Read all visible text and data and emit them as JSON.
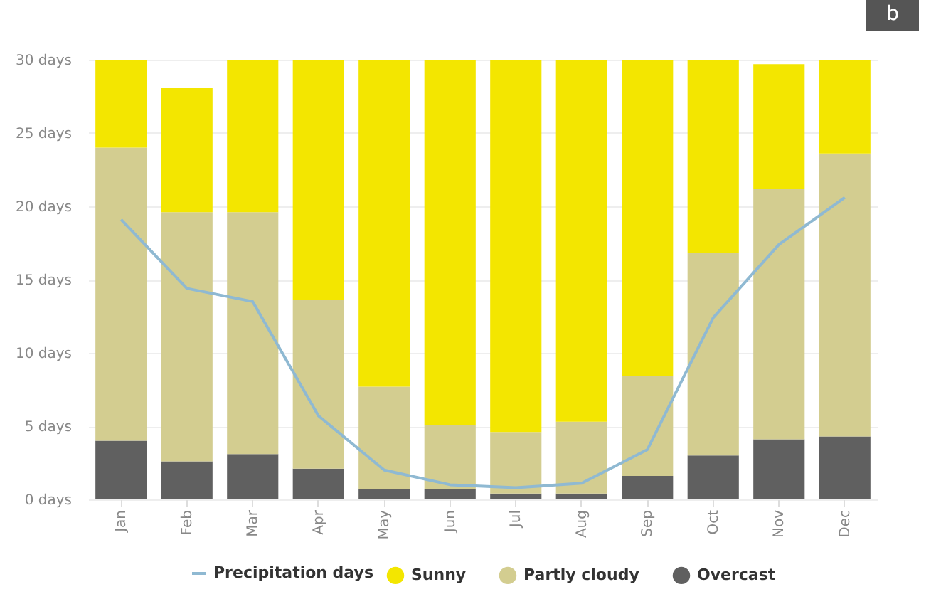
{
  "chart_data": {
    "type": "bar",
    "stacked": true,
    "categories": [
      "Jan",
      "Feb",
      "Mar",
      "Apr",
      "May",
      "Jun",
      "Jul",
      "Aug",
      "Sep",
      "Oct",
      "Nov",
      "Dec"
    ],
    "series": [
      {
        "name": "Overcast",
        "color": "#606060",
        "values": [
          4.0,
          2.6,
          3.1,
          2.1,
          0.7,
          0.7,
          0.4,
          0.4,
          1.6,
          3.0,
          4.1,
          4.3
        ]
      },
      {
        "name": "Partly cloudy",
        "color": "#d3cd90",
        "values": [
          20.0,
          17.0,
          16.5,
          11.5,
          7.0,
          4.4,
          4.2,
          4.9,
          6.8,
          13.8,
          17.1,
          19.3
        ]
      },
      {
        "name": "Sunny",
        "color": "#f3e600",
        "values": [
          6.0,
          8.5,
          10.4,
          16.4,
          22.3,
          24.9,
          25.4,
          24.7,
          21.6,
          13.2,
          8.5,
          6.4
        ]
      },
      {
        "name": "Precipitation days",
        "type": "line",
        "color": "#8fb9d2",
        "values": [
          19.1,
          14.4,
          13.5,
          5.7,
          2.0,
          1.0,
          0.8,
          1.1,
          3.4,
          12.4,
          17.4,
          20.6
        ]
      }
    ],
    "ylim": [
      0,
      30
    ],
    "yticks": [
      {
        "value": 0,
        "label": "0 days"
      },
      {
        "value": 5,
        "label": "5 days"
      },
      {
        "value": 10,
        "label": "10 days"
      },
      {
        "value": 15,
        "label": "15 days"
      },
      {
        "value": 20,
        "label": "20 days"
      },
      {
        "value": 25,
        "label": "25 days"
      },
      {
        "value": 30,
        "label": "30 days"
      }
    ],
    "grid": "y",
    "legend": "bottom",
    "marker": "none",
    "line_style": "solid",
    "annotations": [
      "b"
    ]
  }
}
